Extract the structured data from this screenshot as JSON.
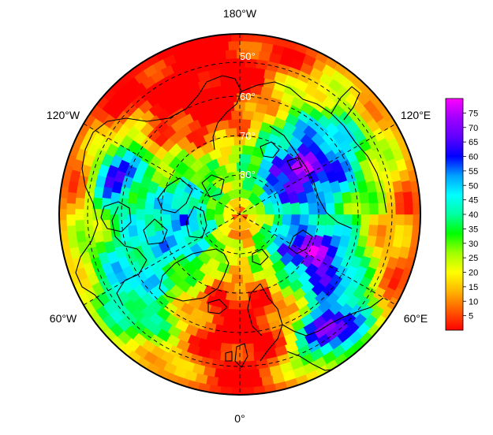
{
  "map": {
    "projection": "north-polar-stereographic",
    "longitude_labels": {
      "top": "180°W",
      "left_upper": "120°W",
      "right_upper": "120°E",
      "left_lower": "60°W",
      "right_lower": "60°E",
      "bottom": "0°"
    },
    "latitude_labels": [
      "50°",
      "60°",
      "70°",
      "80°"
    ],
    "gridlines": "dashed",
    "colors": {
      "outline": "#000000",
      "coastline": "#000000",
      "grid": "#000000"
    }
  },
  "colorbar": {
    "ticks": [
      "75",
      "70",
      "65",
      "60",
      "55",
      "50",
      "45",
      "40",
      "35",
      "30",
      "25",
      "20",
      "15",
      "10",
      "5"
    ],
    "range": [
      0,
      80
    ],
    "stops": [
      "#ff0000",
      "#ff5a00",
      "#ffb400",
      "#ffff00",
      "#a0ff00",
      "#00ff00",
      "#00ffa0",
      "#00ffff",
      "#00a0ff",
      "#0000ff",
      "#6000ff",
      "#a000ff",
      "#ff00ff"
    ]
  }
}
